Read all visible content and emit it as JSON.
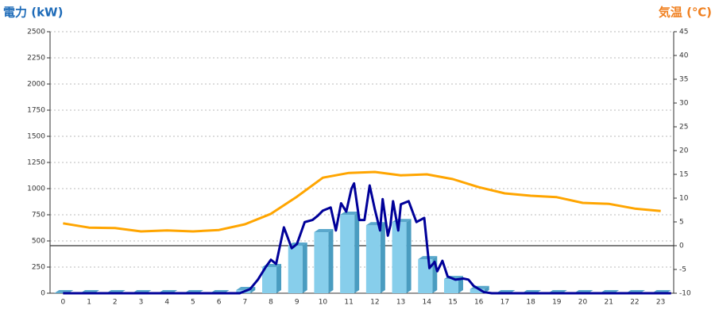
{
  "chart_data": {
    "type": "bar",
    "y_label": "電力 (kW)",
    "y2_label": "気温 (℃)",
    "categories": [
      "0",
      "1",
      "2",
      "3",
      "4",
      "5",
      "6",
      "7",
      "8",
      "9",
      "10",
      "11",
      "12",
      "13",
      "14",
      "15",
      "16",
      "17",
      "18",
      "19",
      "20",
      "21",
      "22",
      "23"
    ],
    "ylim": [
      0,
      2500
    ],
    "yticks": [
      0,
      250,
      500,
      750,
      1000,
      1250,
      1500,
      1750,
      2000,
      2250,
      2500
    ],
    "y2lim": [
      -10,
      45
    ],
    "y2ticks": [
      -10,
      -5,
      0,
      5,
      10,
      15,
      20,
      25,
      30,
      35,
      40,
      45
    ],
    "grid": true,
    "series": [
      {
        "type": "bar",
        "color": "#87ceeb",
        "values": [
          0,
          0,
          0,
          0,
          0,
          0,
          0,
          30,
          250,
          455,
          583,
          750,
          650,
          680,
          325,
          135,
          40,
          0,
          0,
          0,
          0,
          0,
          0,
          0
        ]
      },
      {
        "type": "line",
        "color": "#000099",
        "x": [
          0,
          6.8,
          7.2,
          7.5,
          7.8,
          8.0,
          8.2,
          8.5,
          8.8,
          9.0,
          9.3,
          9.6,
          9.8,
          10.0,
          10.3,
          10.5,
          10.7,
          10.9,
          11.1,
          11.2,
          11.4,
          11.6,
          11.8,
          12.0,
          12.2,
          12.3,
          12.5,
          12.6,
          12.7,
          12.9,
          13.0,
          13.3,
          13.6,
          13.9,
          14.1,
          14.3,
          14.4,
          14.6,
          14.8,
          15.1,
          15.4,
          15.6,
          15.8,
          16.2,
          16.5,
          23.4
        ],
        "values": [
          0,
          0,
          40,
          130,
          250,
          320,
          280,
          630,
          430,
          470,
          680,
          700,
          740,
          790,
          820,
          600,
          860,
          780,
          1000,
          1050,
          700,
          700,
          1030,
          800,
          600,
          900,
          550,
          650,
          880,
          600,
          850,
          880,
          680,
          720,
          240,
          300,
          210,
          310,
          160,
          130,
          140,
          130,
          70,
          10,
          0,
          0
        ]
      },
      {
        "type": "line",
        "axis": "y2",
        "color": "#ffa500",
        "values": [
          4.7,
          3.8,
          3.7,
          3.0,
          3.2,
          3.0,
          3.3,
          4.5,
          6.7,
          10.3,
          14.3,
          15.3,
          15.5,
          14.8,
          15.0,
          14.0,
          12.3,
          11.0,
          10.5,
          10.2,
          9.0,
          8.8,
          7.8,
          7.3
        ]
      }
    ]
  }
}
